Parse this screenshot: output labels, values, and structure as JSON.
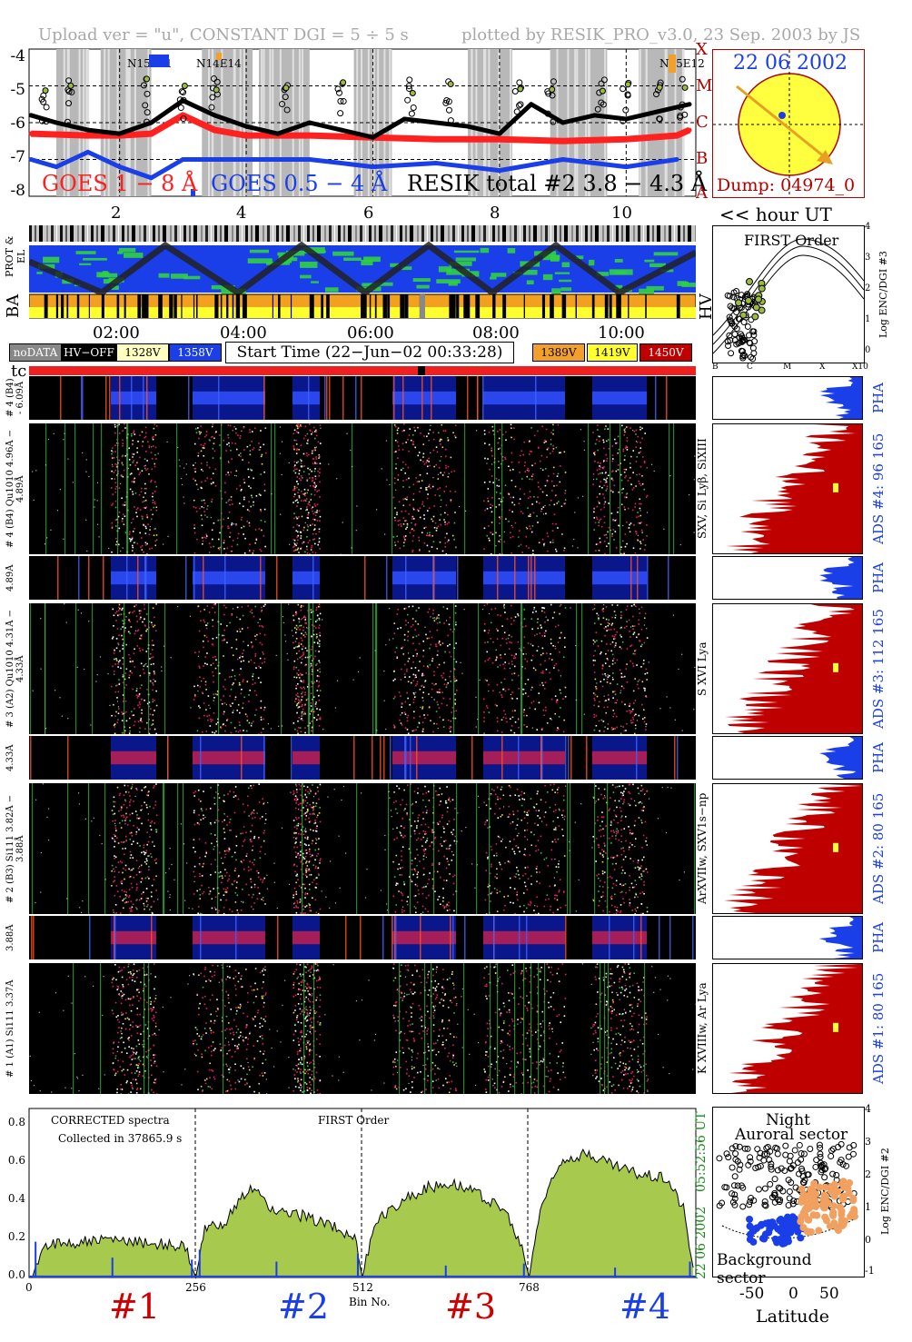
{
  "header": {
    "left": "Upload ver = \"u\", CONSTANT  DGI =   5 ÷   5 s",
    "right": "plotted by RESIK_PRO_v3.0, 23 Sep. 2003 by JS"
  },
  "goes_panel": {
    "y_ticks": [
      "-4",
      "-5",
      "-6",
      "-7",
      "-8"
    ],
    "right_class_labels": [
      "X",
      "M",
      "C",
      "B",
      "A"
    ],
    "legend_goes1": "GOES 1 − 8 Å",
    "legend_goes05": "GOES 0.5 − 4 Å",
    "legend_resik": "RESIK total #2  3.8 − 4.3 Å",
    "regions": [
      "N15E01",
      "N14E14",
      "N15E12"
    ],
    "colors": {
      "goes1": "#ff2020",
      "goes05": "#1a3ee8",
      "resik": "#000000",
      "accent_green": "#9cbb40",
      "orange": "#f2a02a"
    }
  },
  "sun_panel": {
    "date": "22 06 2002",
    "dump": "Dump: 04974_0",
    "colors": {
      "disk": "#ffff40",
      "arrow": "#e8a020",
      "text": "#1a3ee8",
      "dump_text": "#b00000"
    }
  },
  "time_axis": {
    "hour_ticks": [
      "2",
      "4",
      "6",
      "8",
      "10"
    ],
    "hour_label": "<< hour UT",
    "clock_ticks": [
      "02:00",
      "04:00",
      "06:00",
      "08:00",
      "10:00"
    ]
  },
  "status_bars": {
    "prot_el_label": "PROT  & EL",
    "ba_label": "BA",
    "hv_label": "HV",
    "tc_label": "tc"
  },
  "legend": {
    "nodata": "noDATA",
    "hv_off": "HV−OFF",
    "v1328": "1328V",
    "v1358": "1358V",
    "start_time": "Start Time (22−Jun−02 00:33:28)",
    "v1389": "1389V",
    "v1419": "1419V",
    "v1450": "1450V"
  },
  "first_order_panel": {
    "title": "FIRST Order",
    "y_axis_label": "Log ENC/DGI #3",
    "y_ticks": [
      "4",
      "3",
      "2",
      "1",
      "0"
    ],
    "x_ticks": [
      "B",
      "C",
      "M",
      "X",
      "X10"
    ]
  },
  "channels": [
    {
      "pha_left": "# 4 (B4) - 6.09Å",
      "main_left": "# 4 (B4) Qu1010 4.96Å − 4.89Å",
      "lines": "SXV, Si Lyβ, SiXIII",
      "ads": "ADS #4:   96 165",
      "pha": "PHA"
    },
    {
      "pha_left": "4.89Å",
      "main_left": "# 3 (A2) Qu1010 4.31Å − 4.33Å",
      "lines": "S XVI Lya",
      "ads": "ADS #3:   112 165",
      "pha": "PHA"
    },
    {
      "pha_left": "4.33Å",
      "main_left": "# 2 (B3) Si111 3.82Å − 3.88Å",
      "lines": "ArXVIIw, SXV1s−np",
      "ads": "ADS #2:   80 165",
      "pha": "PHA"
    },
    {
      "pha_left": "3.88Å",
      "main_left": "# 1 (A1) Si111 3.37Å",
      "lines": "K XVIIIw, Ar Lya",
      "ads": "ADS #1:   80 165",
      "pha": "PHA"
    }
  ],
  "spectrum_panel": {
    "label_corrected": "CORRECTED spectra",
    "label_collected": "Collected in 37865.9 s",
    "label_first": "FIRST Order",
    "y_ticks": [
      "0.8",
      "0.6",
      "0.4",
      "0.2",
      "0.0"
    ],
    "x_ticks": [
      "0",
      "256",
      "512",
      "768"
    ],
    "xlabel": "Bin No.",
    "side_time": "05:52:56 UT",
    "side_date": "22 06 2002",
    "channel_labels": [
      "#1",
      "#2",
      "#3",
      "#4"
    ]
  },
  "latitude_panel": {
    "title1": "Night",
    "title2": "Auroral sector",
    "bottom": "Background sector",
    "xlabel": "Latitude",
    "x_ticks": [
      "-50",
      "0",
      "50"
    ],
    "y_axis_label": "Log ENC/DGI #2",
    "y_ticks": [
      "4",
      "3",
      "2",
      "1",
      "0",
      "-1"
    ]
  },
  "chart_data": [
    {
      "type": "line",
      "title": "",
      "ylabel": "",
      "ylim": [
        -8,
        -4
      ],
      "xlim": [
        0.57,
        11.1
      ],
      "series": [
        {
          "name": "GOES 1 − 8 Å",
          "x": [
            0.6,
            1.5,
            2.0,
            2.5,
            3.0,
            3.5,
            4.0,
            5.0,
            6.0,
            7.0,
            8.0,
            9.0,
            10.0,
            10.8,
            11.0
          ],
          "values": [
            -6.3,
            -6.35,
            -6.35,
            -6.3,
            -5.8,
            -6.2,
            -6.35,
            -6.35,
            -6.4,
            -6.45,
            -6.45,
            -6.5,
            -6.45,
            -6.35,
            -6.2
          ]
        },
        {
          "name": "GOES 0.5 − 4 Å",
          "x": [
            0.6,
            1.0,
            1.5,
            2.0,
            2.5,
            3.0,
            4.0,
            5.0,
            6.0,
            7.0,
            8.0,
            9.0,
            10.0,
            10.8
          ],
          "values": [
            -7.0,
            -7.2,
            -6.8,
            -7.2,
            -7.5,
            -7.0,
            -7.0,
            -7.0,
            -7.2,
            -7.1,
            -7.3,
            -7.0,
            -7.2,
            -7.0
          ]
        },
        {
          "name": "RESIK total #2  3.8 − 4.3 Å",
          "x": [
            0.6,
            1.0,
            1.5,
            2.0,
            2.5,
            3.0,
            3.5,
            4.0,
            4.5,
            5.0,
            5.5,
            6.0,
            6.5,
            7.0,
            7.5,
            8.0,
            8.5,
            9.0,
            9.5,
            10.0,
            10.5,
            11.0
          ],
          "values": [
            -5.8,
            -6.0,
            -6.2,
            -6.3,
            -6.0,
            -5.4,
            -5.8,
            -6.1,
            -6.3,
            -6.0,
            -6.2,
            -6.4,
            -5.9,
            -6.0,
            -6.1,
            -6.3,
            -5.5,
            -6.0,
            -5.8,
            -5.9,
            -5.7,
            -5.5
          ]
        }
      ]
    },
    {
      "type": "area",
      "title": "",
      "xlabel": "Bin No.",
      "ylabel": "",
      "ylim": [
        0,
        0.85
      ],
      "xlim": [
        0,
        1024
      ],
      "series": [
        {
          "name": "",
          "x": [
            5,
            20,
            40,
            80,
            120,
            160,
            200,
            240,
            256,
            270,
            300,
            340,
            380,
            420,
            460,
            500,
            512,
            530,
            570,
            610,
            650,
            690,
            730,
            760,
            768,
            785,
            820,
            860,
            900,
            940,
            980,
            1005,
            1020
          ],
          "values": [
            0.0,
            0.16,
            0.17,
            0.18,
            0.19,
            0.18,
            0.17,
            0.15,
            0.0,
            0.24,
            0.28,
            0.45,
            0.33,
            0.31,
            0.27,
            0.2,
            0.0,
            0.27,
            0.38,
            0.45,
            0.48,
            0.42,
            0.34,
            0.12,
            0.0,
            0.35,
            0.6,
            0.62,
            0.56,
            0.52,
            0.5,
            0.35,
            0.05
          ]
        }
      ]
    }
  ]
}
